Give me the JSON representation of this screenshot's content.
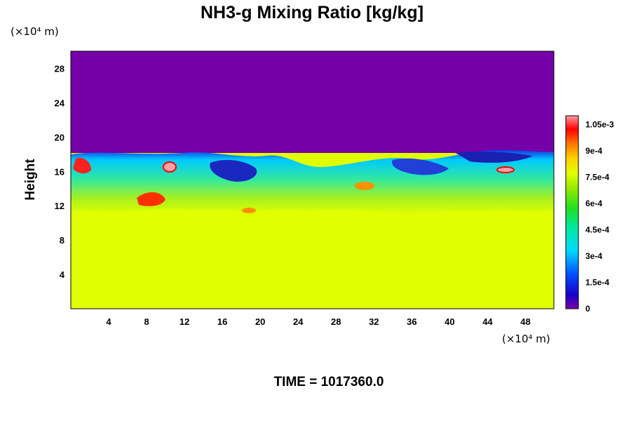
{
  "chart_data": {
    "type": "heatmap",
    "title": "NH3-g Mixing Ratio [kg/kg]",
    "ylabel": "Height",
    "x_unit": "(×10⁴ m)",
    "y_unit": "(×10⁴ m)",
    "x_ticks": [
      4,
      8,
      12,
      16,
      20,
      24,
      28,
      32,
      36,
      40,
      44,
      48
    ],
    "y_ticks": [
      4,
      8,
      12,
      16,
      20,
      24,
      28
    ],
    "xlim": [
      0,
      51
    ],
    "ylim": [
      0,
      30
    ],
    "colorbar": {
      "range": [
        0,
        0.0011
      ],
      "ticks": [
        "1.05e-3",
        "9e-4",
        "7.5e-4",
        "6e-4",
        "4.5e-4",
        "3e-4",
        "1.5e-4",
        "0"
      ],
      "tick_values": [
        0.00105,
        0.0009,
        0.00075,
        0.0006,
        0.00045,
        0.0003,
        0.00015,
        0
      ]
    },
    "field_summary": {
      "upper_layer_value": 0.0,
      "lower_layer_value": 0.00078,
      "turbulent_band_height": [
        10.5,
        18.5
      ]
    },
    "annotation": "TIME = 1017360.0"
  }
}
